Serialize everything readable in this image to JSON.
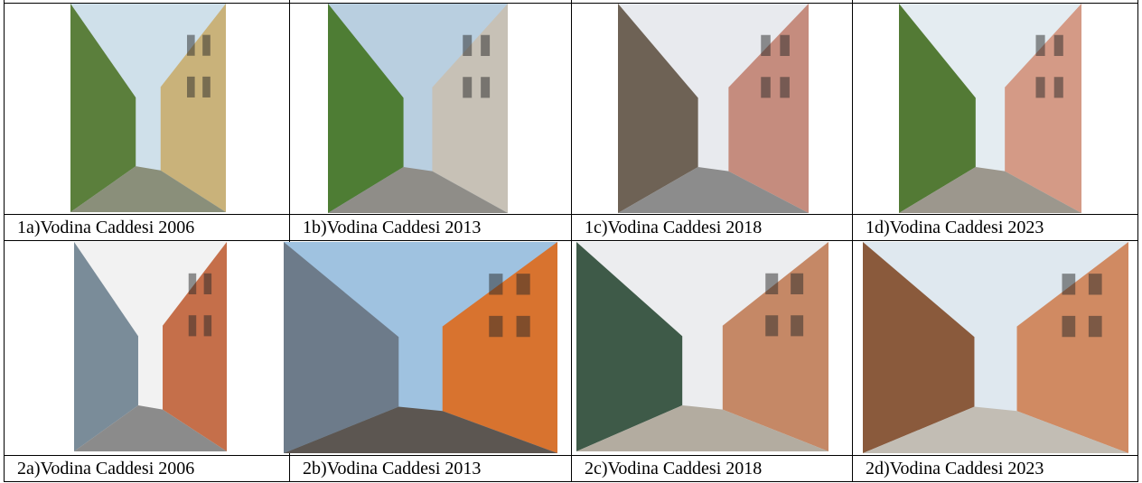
{
  "figure": {
    "cells": [
      {
        "caption": "1a)Vodina Caddesi 2006"
      },
      {
        "caption": "1b)Vodina Caddesi 2013"
      },
      {
        "caption": "1c)Vodina Caddesi 2018"
      },
      {
        "caption": "1d)Vodina Caddesi 2023"
      },
      {
        "caption": "2a)Vodina Caddesi 2006"
      },
      {
        "caption": "2b)Vodina Caddesi 2013"
      },
      {
        "caption": "2c)Vodina Caddesi 2018"
      },
      {
        "caption": "2d)Vodina Caddesi 2023"
      }
    ]
  }
}
